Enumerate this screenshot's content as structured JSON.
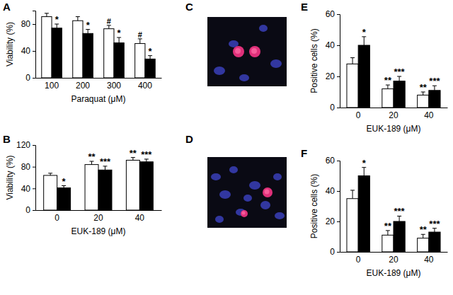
{
  "chart_data": [
    {
      "type": "bar",
      "title": "A",
      "xlabel": "Paraquat (μM)",
      "ylabel": "Viability (%)",
      "categories": [
        "100",
        "200",
        "300",
        "400"
      ],
      "ylim": [
        0,
        100
      ],
      "yticks": [
        0,
        40,
        80
      ],
      "series": [
        {
          "color": "#ffffff",
          "values": [
            91,
            85,
            73,
            51
          ],
          "errors": [
            5,
            6,
            5,
            7
          ],
          "annotations": [
            null,
            null,
            "#",
            "#"
          ]
        },
        {
          "color": "#000000",
          "values": [
            74,
            66,
            52,
            28
          ],
          "errors": [
            6,
            6,
            8,
            5
          ],
          "annotations": [
            "*",
            "*",
            "*",
            "*"
          ]
        }
      ]
    },
    {
      "type": "bar",
      "title": "B",
      "xlabel": "EUK-189 (μM)",
      "ylabel": "Viability (%)",
      "categories": [
        "0",
        "20",
        "40"
      ],
      "ylim": [
        0,
        120
      ],
      "yticks": [
        0,
        40,
        80,
        120
      ],
      "series": [
        {
          "color": "#ffffff",
          "values": [
            64,
            84,
            92
          ],
          "errors": [
            4,
            6,
            5
          ],
          "annotations": [
            null,
            "**",
            "**"
          ]
        },
        {
          "color": "#000000",
          "values": [
            41,
            74,
            89
          ],
          "errors": [
            4,
            7,
            5
          ],
          "annotations": [
            "*",
            "***",
            "***"
          ]
        }
      ]
    },
    {
      "type": "bar",
      "title": "E",
      "xlabel": "EUK-189 (μM)",
      "ylabel": "Positive cells (%)",
      "categories": [
        "0",
        "20",
        "40"
      ],
      "ylim": [
        0,
        60
      ],
      "yticks": [
        0,
        20,
        40,
        60
      ],
      "series": [
        {
          "color": "#ffffff",
          "values": [
            28,
            12,
            8
          ],
          "errors": [
            4,
            2.5,
            2
          ],
          "annotations": [
            null,
            "**",
            "**"
          ]
        },
        {
          "color": "#000000",
          "values": [
            40,
            17,
            11
          ],
          "errors": [
            5.5,
            3,
            3
          ],
          "annotations": [
            "*",
            "***",
            "***"
          ]
        }
      ]
    },
    {
      "type": "bar",
      "title": "F",
      "xlabel": "EUK-189 (μM)",
      "ylabel": "Positive cells (%)",
      "categories": [
        "0",
        "20",
        "40"
      ],
      "ylim": [
        0,
        60
      ],
      "yticks": [
        0,
        20,
        40,
        60
      ],
      "series": [
        {
          "color": "#ffffff",
          "values": [
            35,
            11,
            9
          ],
          "errors": [
            5.5,
            3,
            2.5
          ],
          "annotations": [
            null,
            "**",
            "**"
          ]
        },
        {
          "color": "#000000",
          "values": [
            50,
            20,
            13
          ],
          "errors": [
            5.5,
            3.5,
            2.5
          ],
          "annotations": [
            "*",
            "***",
            "***"
          ]
        }
      ]
    }
  ],
  "images": [
    {
      "label": "C"
    },
    {
      "label": "D"
    }
  ]
}
